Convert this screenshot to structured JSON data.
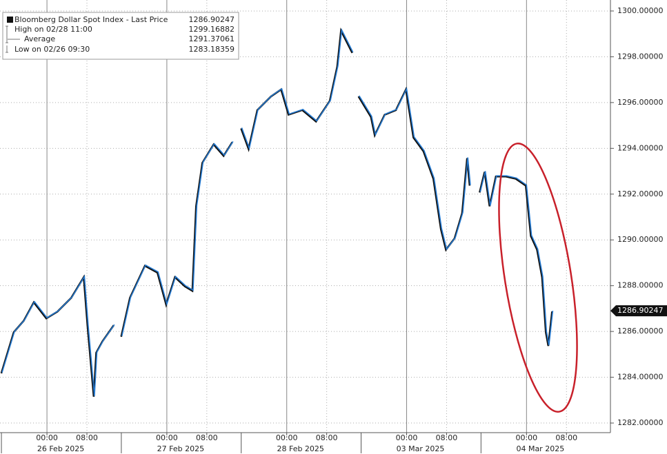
{
  "chart_data": {
    "type": "line",
    "series": [
      {
        "name": "Bloomberg Dollar Spot Index - Last Price",
        "color": "#2479d0",
        "values": [
          1284.2,
          1286.0,
          1286.5,
          1287.3,
          1286.6,
          1286.9,
          1287.5,
          1288.4,
          1286.3,
          1283.18,
          1285.1,
          1285.6,
          1286.3,
          null,
          1285.8,
          1287.5,
          1288.9,
          1288.6,
          1287.2,
          1288.4,
          1288.0,
          1287.8,
          1291.5,
          1293.4,
          1294.2,
          1293.7,
          1294.3,
          null,
          1294.9,
          1294.0,
          1295.7,
          1296.3,
          1296.6,
          1295.5,
          1295.7,
          1295.2,
          1296.1,
          1297.6,
          1299.17,
          1298.2,
          null,
          1296.3,
          1295.4,
          1294.6,
          1295.5,
          1295.7,
          1296.6,
          1294.5,
          1293.9,
          1292.7,
          1290.5,
          1289.6,
          1290.1,
          1291.2,
          1293.6,
          1292.4,
          null,
          1292.1,
          1293.0,
          1291.5,
          1292.8,
          1292.8,
          1292.7,
          1292.4,
          1290.2,
          1289.6,
          1288.4,
          1286.0,
          1285.4,
          1286.90247
        ]
      }
    ],
    "x": [
      "2025-02-25T15:00",
      "2025-02-25T17:30",
      "2025-02-25T19:30",
      "2025-02-25T21:30",
      "2025-02-26T00:00",
      "2025-02-26T02:15",
      "2025-02-26T05:00",
      "2025-02-26T07:30",
      "2025-02-26T08:15",
      "2025-02-26T09:30",
      "2025-02-26T10:00",
      "2025-02-26T11:15",
      "2025-02-26T13:30",
      null,
      "2025-02-26T15:00",
      "2025-02-26T16:45",
      "2025-02-26T19:45",
      "2025-02-26T22:15",
      "2025-02-27T00:00",
      "2025-02-27T01:45",
      "2025-02-27T03:45",
      "2025-02-27T05:15",
      "2025-02-27T06:00",
      "2025-02-27T07:15",
      "2025-02-27T09:30",
      "2025-02-27T11:30",
      "2025-02-27T13:15",
      null,
      "2025-02-27T15:00",
      "2025-02-27T16:30",
      "2025-02-27T18:15",
      "2025-02-27T21:00",
      "2025-02-27T23:00",
      "2025-02-28T00:30",
      "2025-02-28T03:15",
      "2025-02-28T06:00",
      "2025-02-28T08:45",
      "2025-02-28T10:15",
      "2025-02-28T11:00",
      "2025-02-28T13:15",
      null,
      "2025-03-02T14:30",
      "2025-03-02T17:00",
      "2025-03-02T17:45",
      "2025-03-02T19:45",
      "2025-03-02T22:00",
      "2025-03-03T00:00",
      "2025-03-03T01:30",
      "2025-03-03T03:30",
      "2025-03-03T05:30",
      "2025-03-03T07:00",
      "2025-03-03T08:00",
      "2025-03-03T09:45",
      "2025-03-03T11:15",
      "2025-03-03T12:15",
      "2025-03-03T12:45",
      null,
      "2025-03-03T14:45",
      "2025-03-03T15:45",
      "2025-03-03T16:45",
      "2025-03-03T18:00",
      "2025-03-03T20:00",
      "2025-03-03T22:00",
      "2025-03-04T00:00",
      "2025-03-04T01:00",
      "2025-03-04T02:15",
      "2025-03-04T03:15",
      "2025-03-04T04:00",
      "2025-03-04T04:30",
      "2025-03-04T05:15"
    ],
    "last_price": 1286.90247,
    "stats": [
      {
        "label": "High on 02/28 11:00",
        "value": 1299.16882
      },
      {
        "label": "Average",
        "value": 1291.37061
      },
      {
        "label": "Low on 02/26 09:30",
        "value": 1283.18359
      }
    ],
    "xlim": [
      "2025-02-25T14:36",
      "2025-03-04T16:48"
    ],
    "xticks": [
      {
        "value": "2025-02-26T00:00",
        "label": "00:00"
      },
      {
        "value": "2025-02-26T08:00",
        "label": "08:00"
      },
      {
        "value": "2025-02-27T00:00",
        "label": "00:00"
      },
      {
        "value": "2025-02-27T08:00",
        "label": "08:00"
      },
      {
        "value": "2025-02-28T00:00",
        "label": "00:00"
      },
      {
        "value": "2025-02-28T08:00",
        "label": "08:00"
      },
      {
        "value": "2025-03-03T00:00",
        "label": "00:00"
      },
      {
        "value": "2025-03-03T08:00",
        "label": "08:00"
      },
      {
        "value": "2025-03-04T00:00",
        "label": "00:00"
      },
      {
        "value": "2025-03-04T08:00",
        "label": "08:00"
      }
    ],
    "day_labels": [
      "26 Feb 2025",
      "27 Feb 2025",
      "28 Feb 2025",
      "03 Mar 2025",
      "04 Mar 2025"
    ],
    "ylim": [
      1281.58,
      1300.48
    ],
    "yticks": [
      {
        "value": 1282,
        "label": "1282.00000"
      },
      {
        "value": 1284,
        "label": "1284.00000"
      },
      {
        "value": 1286,
        "label": "1286.00000"
      },
      {
        "value": 1288,
        "label": "1288.00000"
      },
      {
        "value": 1290,
        "label": "1290.00000"
      },
      {
        "value": 1292,
        "label": "1292.00000"
      },
      {
        "value": 1294,
        "label": "1294.00000"
      },
      {
        "value": 1296,
        "label": "1296.00000"
      },
      {
        "value": 1298,
        "label": "1298.00000"
      },
      {
        "value": 1300,
        "label": "1300.00000"
      }
    ],
    "grid": true
  }
}
